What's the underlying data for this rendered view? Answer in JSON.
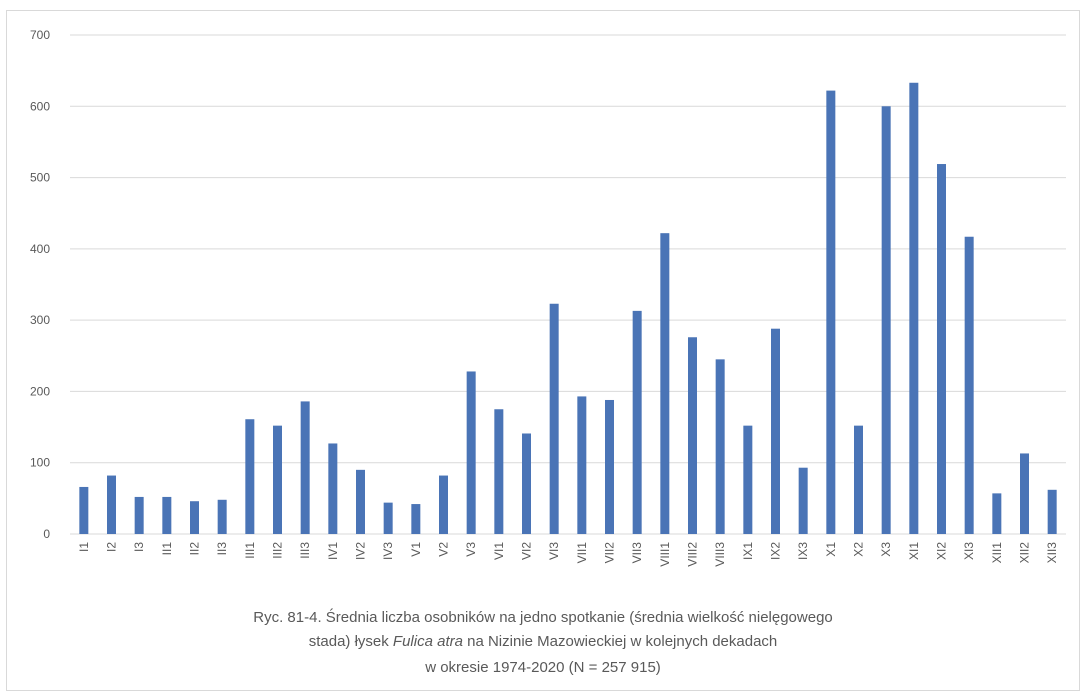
{
  "chart_data": {
    "type": "bar",
    "categories": [
      "I1",
      "I2",
      "I3",
      "II1",
      "II2",
      "II3",
      "III1",
      "III2",
      "III3",
      "IV1",
      "IV2",
      "IV3",
      "V1",
      "V2",
      "V3",
      "VI1",
      "VI2",
      "VI3",
      "VII1",
      "VII2",
      "VII3",
      "VIII1",
      "VIII2",
      "VIII3",
      "IX1",
      "IX2",
      "IX3",
      "X1",
      "X2",
      "X3",
      "XI1",
      "XI2",
      "XI3",
      "XII1",
      "XII2",
      "XII3"
    ],
    "values": [
      66,
      82,
      52,
      52,
      46,
      48,
      161,
      152,
      186,
      127,
      90,
      44,
      42,
      82,
      228,
      175,
      141,
      323,
      193,
      188,
      313,
      422,
      276,
      245,
      152,
      288,
      93,
      622,
      152,
      600,
      633,
      519,
      417,
      57,
      113,
      62
    ],
    "ylim": [
      0,
      700
    ],
    "yticks": [
      0,
      100,
      200,
      300,
      400,
      500,
      600,
      700
    ],
    "grid": true,
    "legend": "none",
    "bar_color": "#4a74b6",
    "grid_color": "#d9d9d9",
    "text_color": "#595959"
  },
  "caption": {
    "line1": "Ryc. 81-4. Średnia liczba osobników na jedno spotkanie (średnia wielkość nielęgowego",
    "line2_pre": "stada) łysek ",
    "line2_species": "Fulica atra",
    "line2_post": " na Nizinie Mazowieckiej w kolejnych dekadach",
    "line3": "w okresie 1974-2020   (N = 257 915)"
  }
}
